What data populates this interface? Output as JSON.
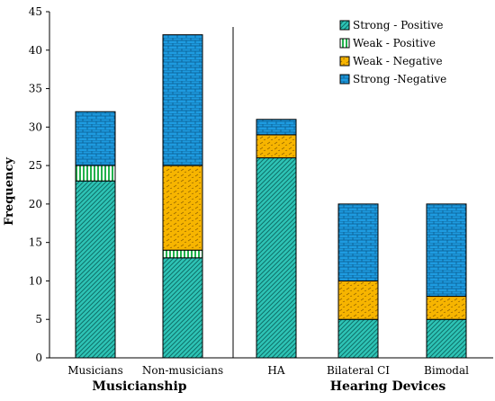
{
  "chart_data": {
    "type": "bar",
    "stacked": true,
    "title": "",
    "xlabel": "",
    "ylabel": "Frequency",
    "ylim": [
      0,
      45
    ],
    "yticks": [
      0,
      5,
      10,
      15,
      20,
      25,
      30,
      35,
      40,
      45
    ],
    "categories": [
      "Musicians",
      "Non-musicians",
      "HA",
      "Bilateral CI",
      "Bimodal"
    ],
    "groups": [
      {
        "label": "Musicianship",
        "categories": [
          "Musicians",
          "Non-musicians"
        ]
      },
      {
        "label": "Hearing Devices",
        "categories": [
          "HA",
          "Bilateral CI",
          "Bimodal"
        ]
      }
    ],
    "series": [
      {
        "name": "Strong - Positive",
        "color": "#2ec4b6",
        "pattern": "diagonal-hatch",
        "values": [
          23,
          13,
          26,
          5,
          5
        ]
      },
      {
        "name": "Weak - Positive",
        "color": "#22b14c",
        "pattern": "vertical-stripes",
        "values": [
          2,
          1,
          0,
          0,
          0
        ]
      },
      {
        "name": "Weak - Negative",
        "color": "#f7b500",
        "pattern": "dashes",
        "values": [
          0,
          11,
          3,
          5,
          3
        ]
      },
      {
        "name": "Strong -Negative",
        "color": "#1e9be0",
        "pattern": "brick",
        "values": [
          7,
          17,
          2,
          10,
          12
        ]
      }
    ],
    "grid": false,
    "legend_position": "top-right"
  }
}
